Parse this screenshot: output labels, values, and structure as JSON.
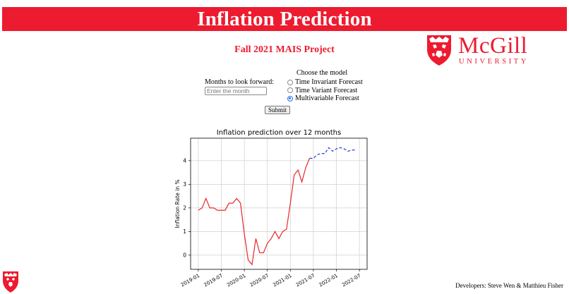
{
  "header": {
    "title": "Inflation Prediction",
    "subtitle": "Fall 2021 MAIS Project"
  },
  "logo": {
    "word": "McGill",
    "sub": "UNIVERSITY"
  },
  "form": {
    "months_label": "Months to look forward:",
    "months_placeholder": "Enter the month",
    "model_label": "Choose the model",
    "options": [
      {
        "label": "Time Invariant Forecast",
        "checked": false
      },
      {
        "label": "Time Variant Forecast",
        "checked": false
      },
      {
        "label": "Multivariable Forecast",
        "checked": true
      }
    ],
    "submit_label": "Submit"
  },
  "footer": {
    "credits": "Developers: Steve Wen & Matthieu Fisher"
  },
  "colors": {
    "brand_red": "#ed1b2f",
    "history_line": "#e8262c",
    "forecast_line": "#2b3bd6"
  },
  "chart_data": {
    "type": "line",
    "title": "Inflation prediction over 12 months",
    "xlabel": "",
    "ylabel": "Inflation Rate in %",
    "x_ticks": [
      "2019-01",
      "2019-07",
      "2020-01",
      "2020-07",
      "2021-01",
      "2021-07",
      "2022-01",
      "2022-07"
    ],
    "y_ticks": [
      0,
      1,
      2,
      3,
      4
    ],
    "ylim": [
      -0.6,
      4.95
    ],
    "xlim": [
      "2018-11",
      "2022-09"
    ],
    "grid": true,
    "series": [
      {
        "style": "solid",
        "points": [
          [
            "2019-01",
            1.9
          ],
          [
            "2019-02",
            2.0
          ],
          [
            "2019-03",
            2.4
          ],
          [
            "2019-04",
            2.0
          ],
          [
            "2019-05",
            2.0
          ],
          [
            "2019-06",
            1.9
          ],
          [
            "2019-07",
            1.9
          ],
          [
            "2019-08",
            1.9
          ],
          [
            "2019-09",
            2.2
          ],
          [
            "2019-10",
            2.2
          ],
          [
            "2019-11",
            2.4
          ],
          [
            "2019-12",
            2.2
          ],
          [
            "2020-01",
            0.9
          ],
          [
            "2020-02",
            -0.2
          ],
          [
            "2020-03",
            -0.4
          ],
          [
            "2020-04",
            0.7
          ],
          [
            "2020-05",
            0.1
          ],
          [
            "2020-06",
            0.1
          ],
          [
            "2020-07",
            0.5
          ],
          [
            "2020-08",
            0.7
          ],
          [
            "2020-09",
            1.0
          ],
          [
            "2020-10",
            0.7
          ],
          [
            "2020-11",
            1.0
          ],
          [
            "2020-12",
            1.1
          ],
          [
            "2021-01",
            2.2
          ],
          [
            "2021-02",
            3.4
          ],
          [
            "2021-03",
            3.6
          ],
          [
            "2021-04",
            3.1
          ],
          [
            "2021-05",
            3.7
          ],
          [
            "2021-06",
            4.1
          ]
        ]
      },
      {
        "style": "dashed",
        "points": [
          [
            "2021-06",
            4.1
          ],
          [
            "2021-07",
            4.1
          ],
          [
            "2021-08",
            4.25
          ],
          [
            "2021-09",
            4.3
          ],
          [
            "2021-10",
            4.3
          ],
          [
            "2021-11",
            4.55
          ],
          [
            "2021-12",
            4.4
          ],
          [
            "2022-01",
            4.5
          ],
          [
            "2022-02",
            4.55
          ],
          [
            "2022-03",
            4.5
          ],
          [
            "2022-04",
            4.4
          ],
          [
            "2022-05",
            4.45
          ],
          [
            "2022-06",
            4.45
          ]
        ]
      }
    ]
  }
}
